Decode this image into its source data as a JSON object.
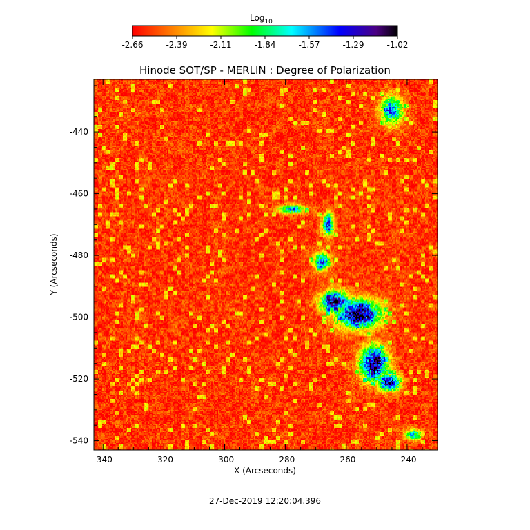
{
  "colorbar": {
    "label": "Log",
    "label_subscript": "10",
    "tick_labels": [
      "-2.66",
      "-2.39",
      "-2.11",
      "-1.84",
      "-1.57",
      "-1.29",
      "-1.02"
    ],
    "range": [
      -2.66,
      -1.02
    ],
    "colors": [
      "#ff0000",
      "#ff7f00",
      "#ffff00",
      "#00ff00",
      "#00ffff",
      "#0000ff",
      "#4b0082",
      "#000000"
    ]
  },
  "chart_data": {
    "type": "heatmap",
    "title": "Hinode SOT/SP - MERLIN : Degree of Polarization",
    "xlabel": "X (Arcseconds)",
    "ylabel": "Y (Arcseconds)",
    "xlim": [
      -343,
      -230
    ],
    "ylim": [
      -543,
      -423
    ],
    "x_ticks": [
      -340,
      -320,
      -300,
      -280,
      -260,
      -240
    ],
    "y_ticks": [
      -440,
      -460,
      -480,
      -500,
      -520,
      -540
    ],
    "value_range": [
      -2.66,
      -1.02
    ],
    "background_level": -2.55,
    "plage_regions": [
      {
        "x": -256,
        "y": -499,
        "rx": 8,
        "ry": 5,
        "peak": -1.02
      },
      {
        "x": -251,
        "y": -515,
        "rx": 5,
        "ry": 6,
        "peak": -1.1
      },
      {
        "x": -246,
        "y": -521,
        "rx": 4,
        "ry": 3,
        "peak": -1.1
      },
      {
        "x": -264,
        "y": -495,
        "rx": 5,
        "ry": 4,
        "peak": -1.2
      },
      {
        "x": -266,
        "y": -470,
        "rx": 2,
        "ry": 4,
        "peak": -1.4
      },
      {
        "x": -268,
        "y": -482,
        "rx": 3,
        "ry": 3,
        "peak": -1.4
      },
      {
        "x": -278,
        "y": -465,
        "rx": 5,
        "ry": 1.5,
        "peak": -1.5
      },
      {
        "x": -245,
        "y": -433,
        "rx": 4,
        "ry": 5,
        "peak": -1.5
      },
      {
        "x": -238,
        "y": -538,
        "rx": 3,
        "ry": 2,
        "peak": -1.6
      }
    ]
  },
  "timestamp": "27-Dec-2019 12:20:04.396"
}
